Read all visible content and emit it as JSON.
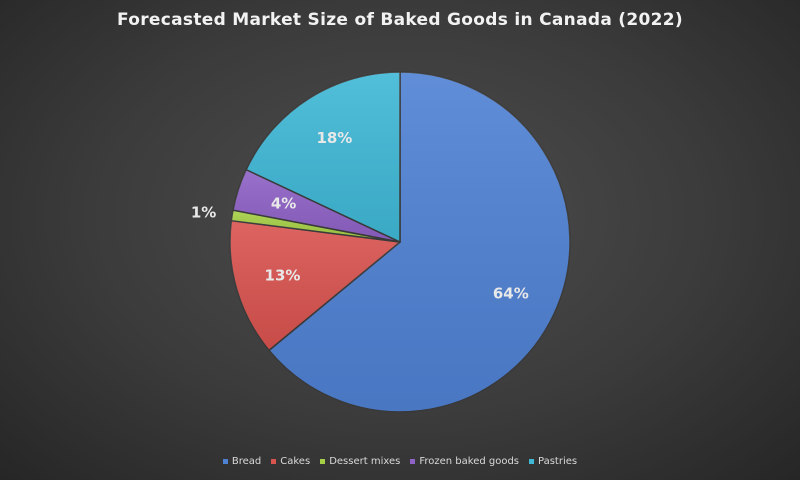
{
  "chart_data": {
    "type": "pie",
    "title": "Forecasted Market Size of Baked Goods in Canada (2022)",
    "categories": [
      "Bread",
      "Cakes",
      "Dessert mixes",
      "Frozen baked goods",
      "Pastries"
    ],
    "values": [
      64,
      13,
      1,
      4,
      18
    ],
    "labels": [
      "64%",
      "13%",
      "1%",
      "4%",
      "18%"
    ],
    "colors": [
      "#4f81d3",
      "#d9534f",
      "#a5cf45",
      "#8e62c6",
      "#3fb8d6"
    ],
    "start": "12 o'clock",
    "direction": "clockwise",
    "legend": "bottom"
  }
}
